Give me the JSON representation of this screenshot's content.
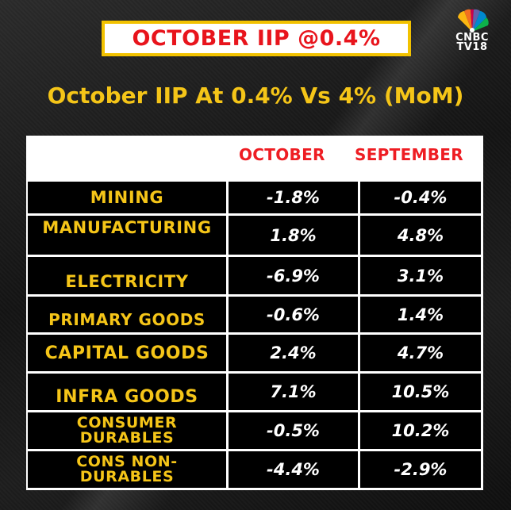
{
  "banner": {
    "title": "OCTOBER IIP @0.4%"
  },
  "logo": {
    "line1": "CNBC",
    "line2": "TV18"
  },
  "subtitle": "October IIP At 0.4% Vs 4% (MoM)",
  "table": {
    "headers": [
      "",
      "OCTOBER",
      "SEPTEMBER"
    ],
    "rows": [
      {
        "label": "MINING",
        "october": "-1.8%",
        "september": "-0.4%"
      },
      {
        "label": "MANUFACTURING",
        "october": "1.8%",
        "september": "4.8%"
      },
      {
        "label": "ELECTRICITY",
        "october": "-6.9%",
        "september": "3.1%"
      },
      {
        "label": "PRIMARY GOODS",
        "october": "-0.6%",
        "september": "1.4%"
      },
      {
        "label": "CAPITAL GOODS",
        "october": "2.4%",
        "september": "4.7%"
      },
      {
        "label": "INFRA GOODS",
        "october": "7.1%",
        "september": "10.5%"
      },
      {
        "label": "CONSUMER DURABLES",
        "label_lines": [
          "CONSUMER",
          "DURABLES"
        ],
        "october": "-0.5%",
        "september": "10.2%"
      },
      {
        "label": "CONS NON-DURABLES",
        "label_lines": [
          "CONS NON-",
          "DURABLES"
        ],
        "october": "-4.4%",
        "september": "-2.9%"
      }
    ]
  },
  "colors": {
    "banner_text": "#e8141c",
    "banner_border": "#f2c200",
    "subtitle": "#f5c518",
    "header_text": "#ee1d23",
    "label_text": "#f5c518",
    "value_text": "#ffffff"
  }
}
